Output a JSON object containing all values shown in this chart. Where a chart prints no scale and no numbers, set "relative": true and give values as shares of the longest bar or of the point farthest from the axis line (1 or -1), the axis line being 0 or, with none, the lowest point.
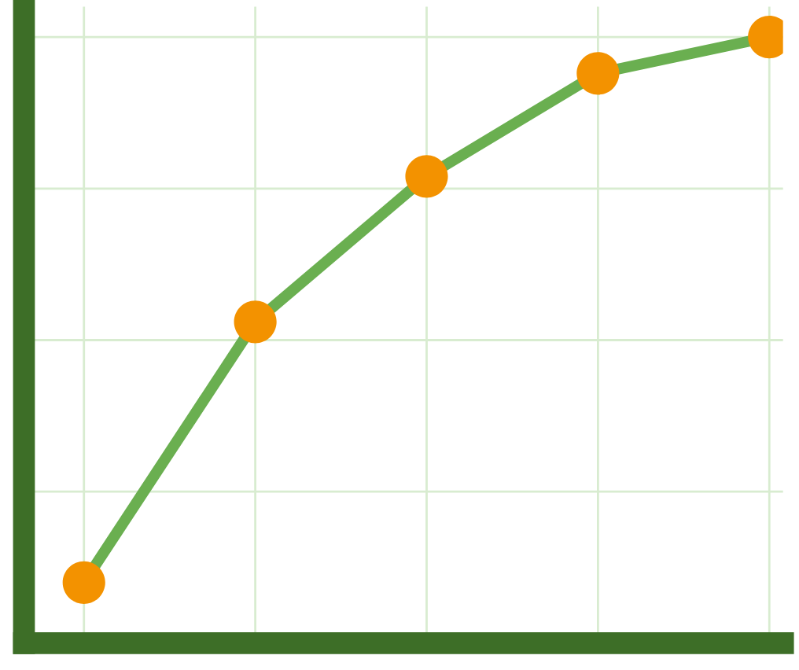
{
  "chart_data": {
    "type": "line",
    "relative": true,
    "categories": [
      null,
      null,
      null,
      null,
      null
    ],
    "series": [
      {
        "color": "#6aaf50",
        "colors": [
          "#f39200",
          "#f39200",
          "#f39200",
          "#f39200",
          "#f39200"
        ],
        "values": [
          0.1,
          0.53,
          0.77,
          0.94,
          1
        ]
      }
    ],
    "marker": "circle",
    "line_style": "solid",
    "grid": true
  }
}
